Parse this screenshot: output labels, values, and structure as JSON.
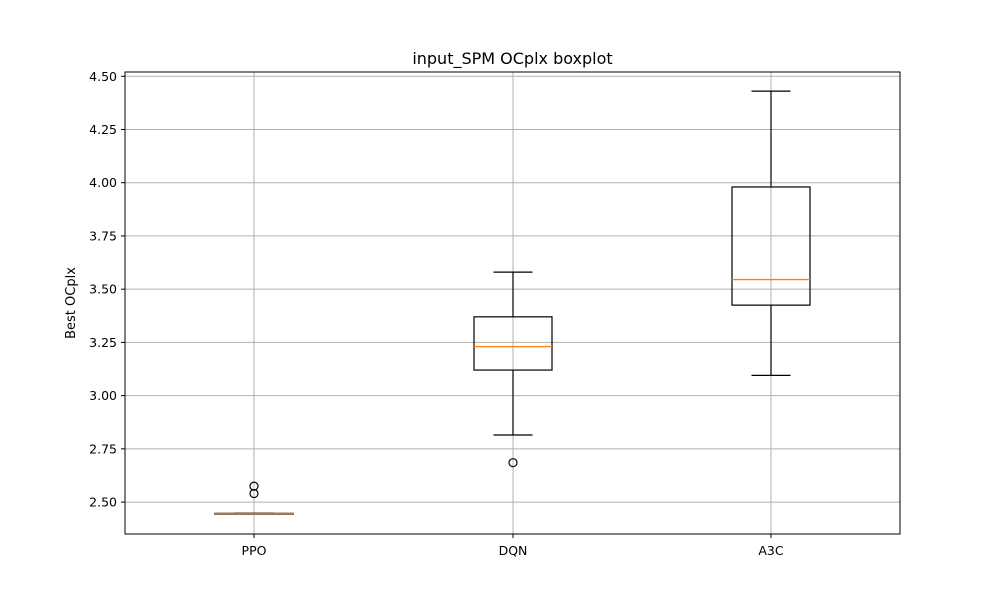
{
  "chart_data": {
    "type": "boxplot",
    "title": "input_SPM OCplx boxplot",
    "xlabel": "",
    "ylabel": "Best OCplx",
    "ylim": [
      2.35,
      4.52
    ],
    "yticks": [
      2.5,
      2.75,
      3.0,
      3.25,
      3.5,
      3.75,
      4.0,
      4.25,
      4.5
    ],
    "ytick_labels": [
      "2.50",
      "2.75",
      "3.00",
      "3.25",
      "3.50",
      "3.75",
      "4.00",
      "4.25",
      "4.50"
    ],
    "grid": true,
    "categories": [
      "PPO",
      "DQN",
      "A3C"
    ],
    "boxes": [
      {
        "category": "PPO",
        "whisker_low": 2.445,
        "q1": 2.445,
        "median": 2.445,
        "q3": 2.447,
        "whisker_high": 2.447,
        "outliers": [
          2.54,
          2.575
        ]
      },
      {
        "category": "DQN",
        "whisker_low": 2.815,
        "q1": 3.12,
        "median": 3.23,
        "q3": 3.37,
        "whisker_high": 3.58,
        "outliers": [
          2.685
        ]
      },
      {
        "category": "A3C",
        "whisker_low": 3.095,
        "q1": 3.425,
        "median": 3.545,
        "q3": 3.98,
        "whisker_high": 4.43,
        "outliers": []
      }
    ],
    "colors": {
      "box": "#000000",
      "median": "#ff7f0e",
      "grid": "#b0b0b0"
    }
  }
}
